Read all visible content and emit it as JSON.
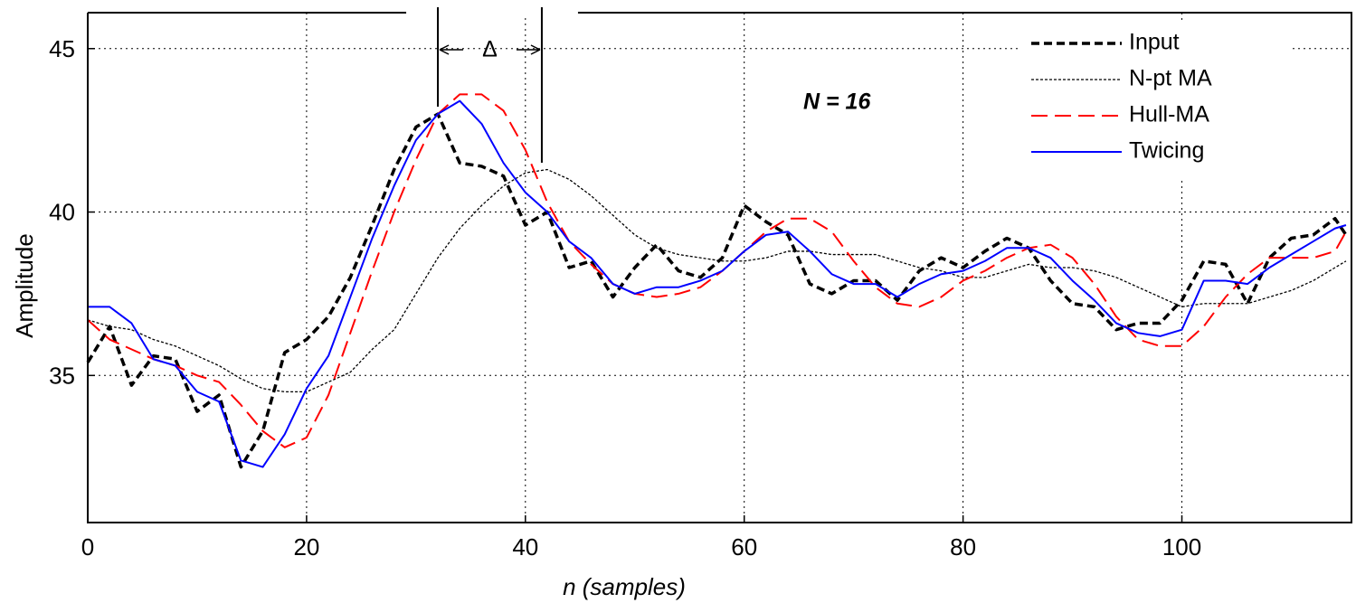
{
  "chart_data": {
    "type": "line",
    "xlabel": "n (samples)",
    "ylabel": "Amplitude",
    "annotation": "N = 16",
    "delta": {
      "label": "Δ",
      "x": [
        32,
        41.5
      ]
    },
    "x": [
      0,
      2,
      4,
      6,
      8,
      10,
      12,
      14,
      16,
      18,
      20,
      22,
      24,
      26,
      28,
      30,
      32,
      34,
      36,
      38,
      40,
      42,
      44,
      46,
      48,
      50,
      52,
      54,
      56,
      58,
      60,
      62,
      64,
      66,
      68,
      70,
      72,
      74,
      76,
      78,
      80,
      82,
      84,
      86,
      88,
      90,
      92,
      94,
      96,
      98,
      100,
      102,
      104,
      106,
      108,
      110,
      112,
      114,
      115
    ],
    "series": [
      {
        "name": "Input",
        "color": "#000000",
        "linestyle": "dashed",
        "linewidth": 3.5,
        "values": [
          35.4,
          36.5,
          34.7,
          35.6,
          35.5,
          33.9,
          34.4,
          32.2,
          33.3,
          35.7,
          36.1,
          36.8,
          38.0,
          39.6,
          41.3,
          42.6,
          43.0,
          41.5,
          41.4,
          41.1,
          39.6,
          40.0,
          38.3,
          38.5,
          37.4,
          38.3,
          39.0,
          38.2,
          38.0,
          38.6,
          40.2,
          39.7,
          39.3,
          37.8,
          37.5,
          37.9,
          37.9,
          37.3,
          38.2,
          38.6,
          38.3,
          38.8,
          39.2,
          38.9,
          37.9,
          37.2,
          37.1,
          36.4,
          36.6,
          36.6,
          37.3,
          38.5,
          38.4,
          37.2,
          38.6,
          39.2,
          39.3,
          39.8,
          39.3
        ]
      },
      {
        "name": "N-pt MA",
        "color": "#000000",
        "linestyle": "dotted",
        "linewidth": 1.3,
        "values": [
          36.7,
          36.5,
          36.4,
          36.1,
          35.9,
          35.6,
          35.3,
          34.9,
          34.6,
          34.5,
          34.5,
          34.8,
          35.1,
          35.8,
          36.4,
          37.5,
          38.6,
          39.5,
          40.2,
          40.8,
          41.2,
          41.3,
          41.0,
          40.5,
          39.9,
          39.3,
          38.9,
          38.7,
          38.6,
          38.5,
          38.5,
          38.6,
          38.8,
          38.8,
          38.7,
          38.7,
          38.7,
          38.5,
          38.3,
          38.2,
          38.0,
          38.0,
          38.2,
          38.4,
          38.3,
          38.3,
          38.2,
          38.0,
          37.7,
          37.4,
          37.1,
          37.2,
          37.2,
          37.2,
          37.4,
          37.6,
          37.9,
          38.3,
          38.5
        ]
      },
      {
        "name": "Hull-MA",
        "color": "#ff0000",
        "linestyle": "longdash",
        "linewidth": 2,
        "values": [
          36.7,
          36.1,
          35.8,
          35.5,
          35.3,
          35.0,
          34.8,
          34.1,
          33.3,
          32.8,
          33.1,
          34.4,
          36.3,
          38.2,
          40.0,
          41.6,
          43.0,
          43.6,
          43.6,
          43.1,
          41.9,
          40.3,
          39.1,
          38.4,
          37.8,
          37.5,
          37.4,
          37.5,
          37.7,
          38.2,
          38.8,
          39.4,
          39.8,
          39.8,
          39.4,
          38.5,
          37.7,
          37.2,
          37.1,
          37.4,
          37.9,
          38.2,
          38.6,
          38.9,
          39.0,
          38.6,
          37.8,
          36.8,
          36.1,
          35.9,
          35.9,
          36.5,
          37.4,
          38.1,
          38.6,
          38.6,
          38.6,
          38.8,
          39.4
        ]
      },
      {
        "name": "Twicing",
        "color": "#0000ff",
        "linestyle": "solid",
        "linewidth": 2,
        "values": [
          37.1,
          37.1,
          36.6,
          35.5,
          35.3,
          34.5,
          34.2,
          32.4,
          32.2,
          33.2,
          34.6,
          35.6,
          37.4,
          39.2,
          40.8,
          42.2,
          43.0,
          43.4,
          42.7,
          41.5,
          40.6,
          40.0,
          39.1,
          38.6,
          37.8,
          37.5,
          37.7,
          37.7,
          37.9,
          38.2,
          38.8,
          39.3,
          39.4,
          38.8,
          38.1,
          37.8,
          37.8,
          37.4,
          37.8,
          38.1,
          38.2,
          38.5,
          38.9,
          38.9,
          38.6,
          37.9,
          37.3,
          36.6,
          36.3,
          36.2,
          36.4,
          37.9,
          37.9,
          37.8,
          38.3,
          38.7,
          39.1,
          39.5,
          39.6
        ]
      }
    ],
    "xlim": [
      0,
      115.5
    ],
    "ylim": [
      30.5,
      46.1
    ],
    "xticks": [
      0,
      20,
      40,
      60,
      80,
      100
    ],
    "yticks": [
      35,
      40,
      45
    ],
    "grid": true,
    "legend": "upper right"
  }
}
